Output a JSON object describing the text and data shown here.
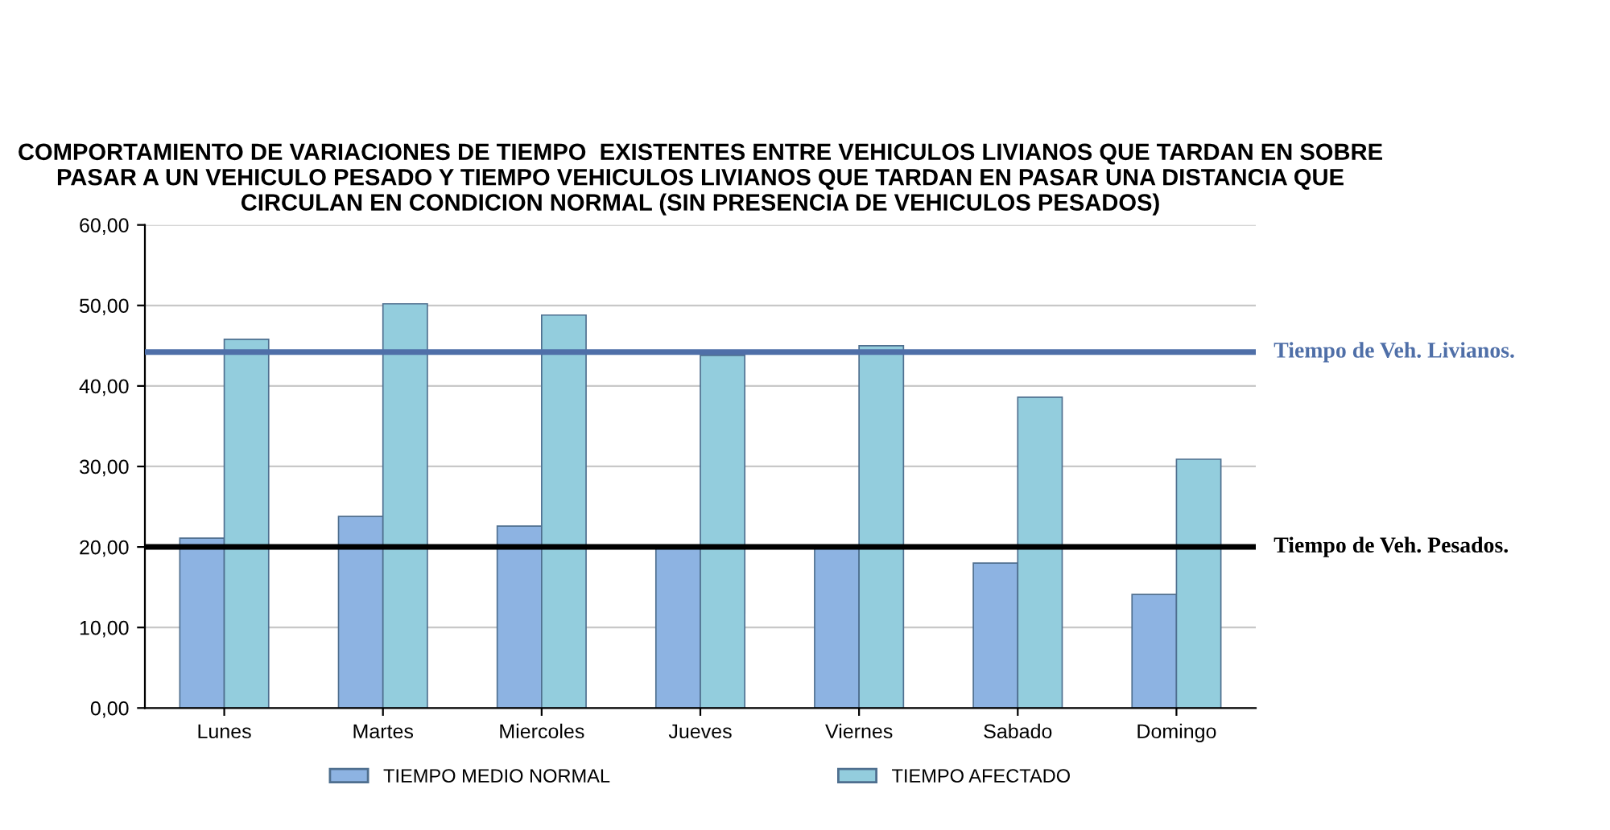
{
  "chart_data": {
    "type": "bar",
    "title": "COMPORTAMIENTO DE VARIACIONES DE TIEMPO  EXISTENTES ENTRE VEHICULOS LIVIANOS QUE TARDAN EN SOBRE PASAR A UN VEHICULO PESADO Y TIEMPO VEHICULOS LIVIANOS QUE TARDAN EN PASAR UNA DISTANCIA QUE CIRCULAN EN CONDICION NORMAL (SIN PRESENCIA DE VEHICULOS PESADOS)",
    "categories": [
      "Lunes",
      "Martes",
      "Miercoles",
      "Jueves",
      "Viernes",
      "Sabado",
      "Domingo"
    ],
    "series": [
      {
        "name": "TIEMPO MEDIO NORMAL",
        "color": "#8db3e2",
        "values": [
          21.1,
          23.8,
          22.6,
          20.0,
          20.0,
          18.0,
          14.1
        ]
      },
      {
        "name": "TIEMPO AFECTADO",
        "color": "#93cddd",
        "values": [
          45.8,
          50.2,
          48.8,
          43.8,
          45.0,
          38.6,
          30.9
        ]
      }
    ],
    "ylim": [
      0,
      60
    ],
    "yticks": [
      {
        "value": 0,
        "label": "0,00"
      },
      {
        "value": 10,
        "label": "10,00"
      },
      {
        "value": 20,
        "label": "20,00"
      },
      {
        "value": 30,
        "label": "30,00"
      },
      {
        "value": 40,
        "label": "40,00"
      },
      {
        "value": 50,
        "label": "50,00"
      },
      {
        "value": 60,
        "label": "60,00"
      }
    ],
    "ref_lines": [
      {
        "axis": "y",
        "value": 44.2,
        "label": "Tiempo de Veh. Livianos.",
        "color": "#4f6fa8"
      },
      {
        "axis": "y",
        "value": 20,
        "label": "Tiempo de Veh. Pesados.",
        "color": "#000000"
      }
    ],
    "grid": "y",
    "legend": "bottom"
  }
}
